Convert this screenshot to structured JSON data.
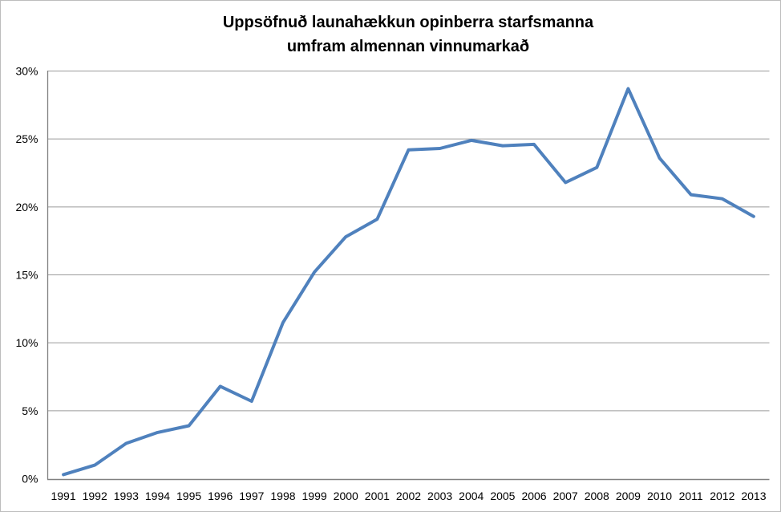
{
  "chart_data": {
    "type": "line",
    "title": "Uppsöfnuð launahækkun opinberra starfsmanna",
    "subtitle": "umfram almennan vinnumarkað",
    "categories": [
      "1991",
      "1992",
      "1993",
      "1994",
      "1995",
      "1996",
      "1997",
      "1998",
      "1999",
      "2000",
      "2001",
      "2002",
      "2003",
      "2004",
      "2005",
      "2006",
      "2007",
      "2008",
      "2009",
      "2010",
      "2011",
      "2012",
      "2013"
    ],
    "values": [
      0.3,
      1.0,
      2.6,
      3.4,
      3.9,
      6.8,
      5.7,
      11.5,
      15.2,
      17.8,
      19.1,
      24.2,
      24.3,
      24.9,
      24.5,
      24.6,
      21.8,
      22.9,
      28.7,
      23.6,
      20.9,
      20.6,
      19.3
    ],
    "xlabel": "",
    "ylabel": "",
    "ylim": [
      0,
      30
    ],
    "ytick_step": 5,
    "ytick_labels": [
      "0%",
      "5%",
      "10%",
      "15%",
      "20%",
      "25%",
      "30%"
    ],
    "grid": true,
    "legend": "none",
    "colors": {
      "line": "#4F81BD",
      "gridline": "#9b9b9b",
      "axis": "#808080",
      "text": "#000000",
      "background": "#ffffff"
    }
  }
}
